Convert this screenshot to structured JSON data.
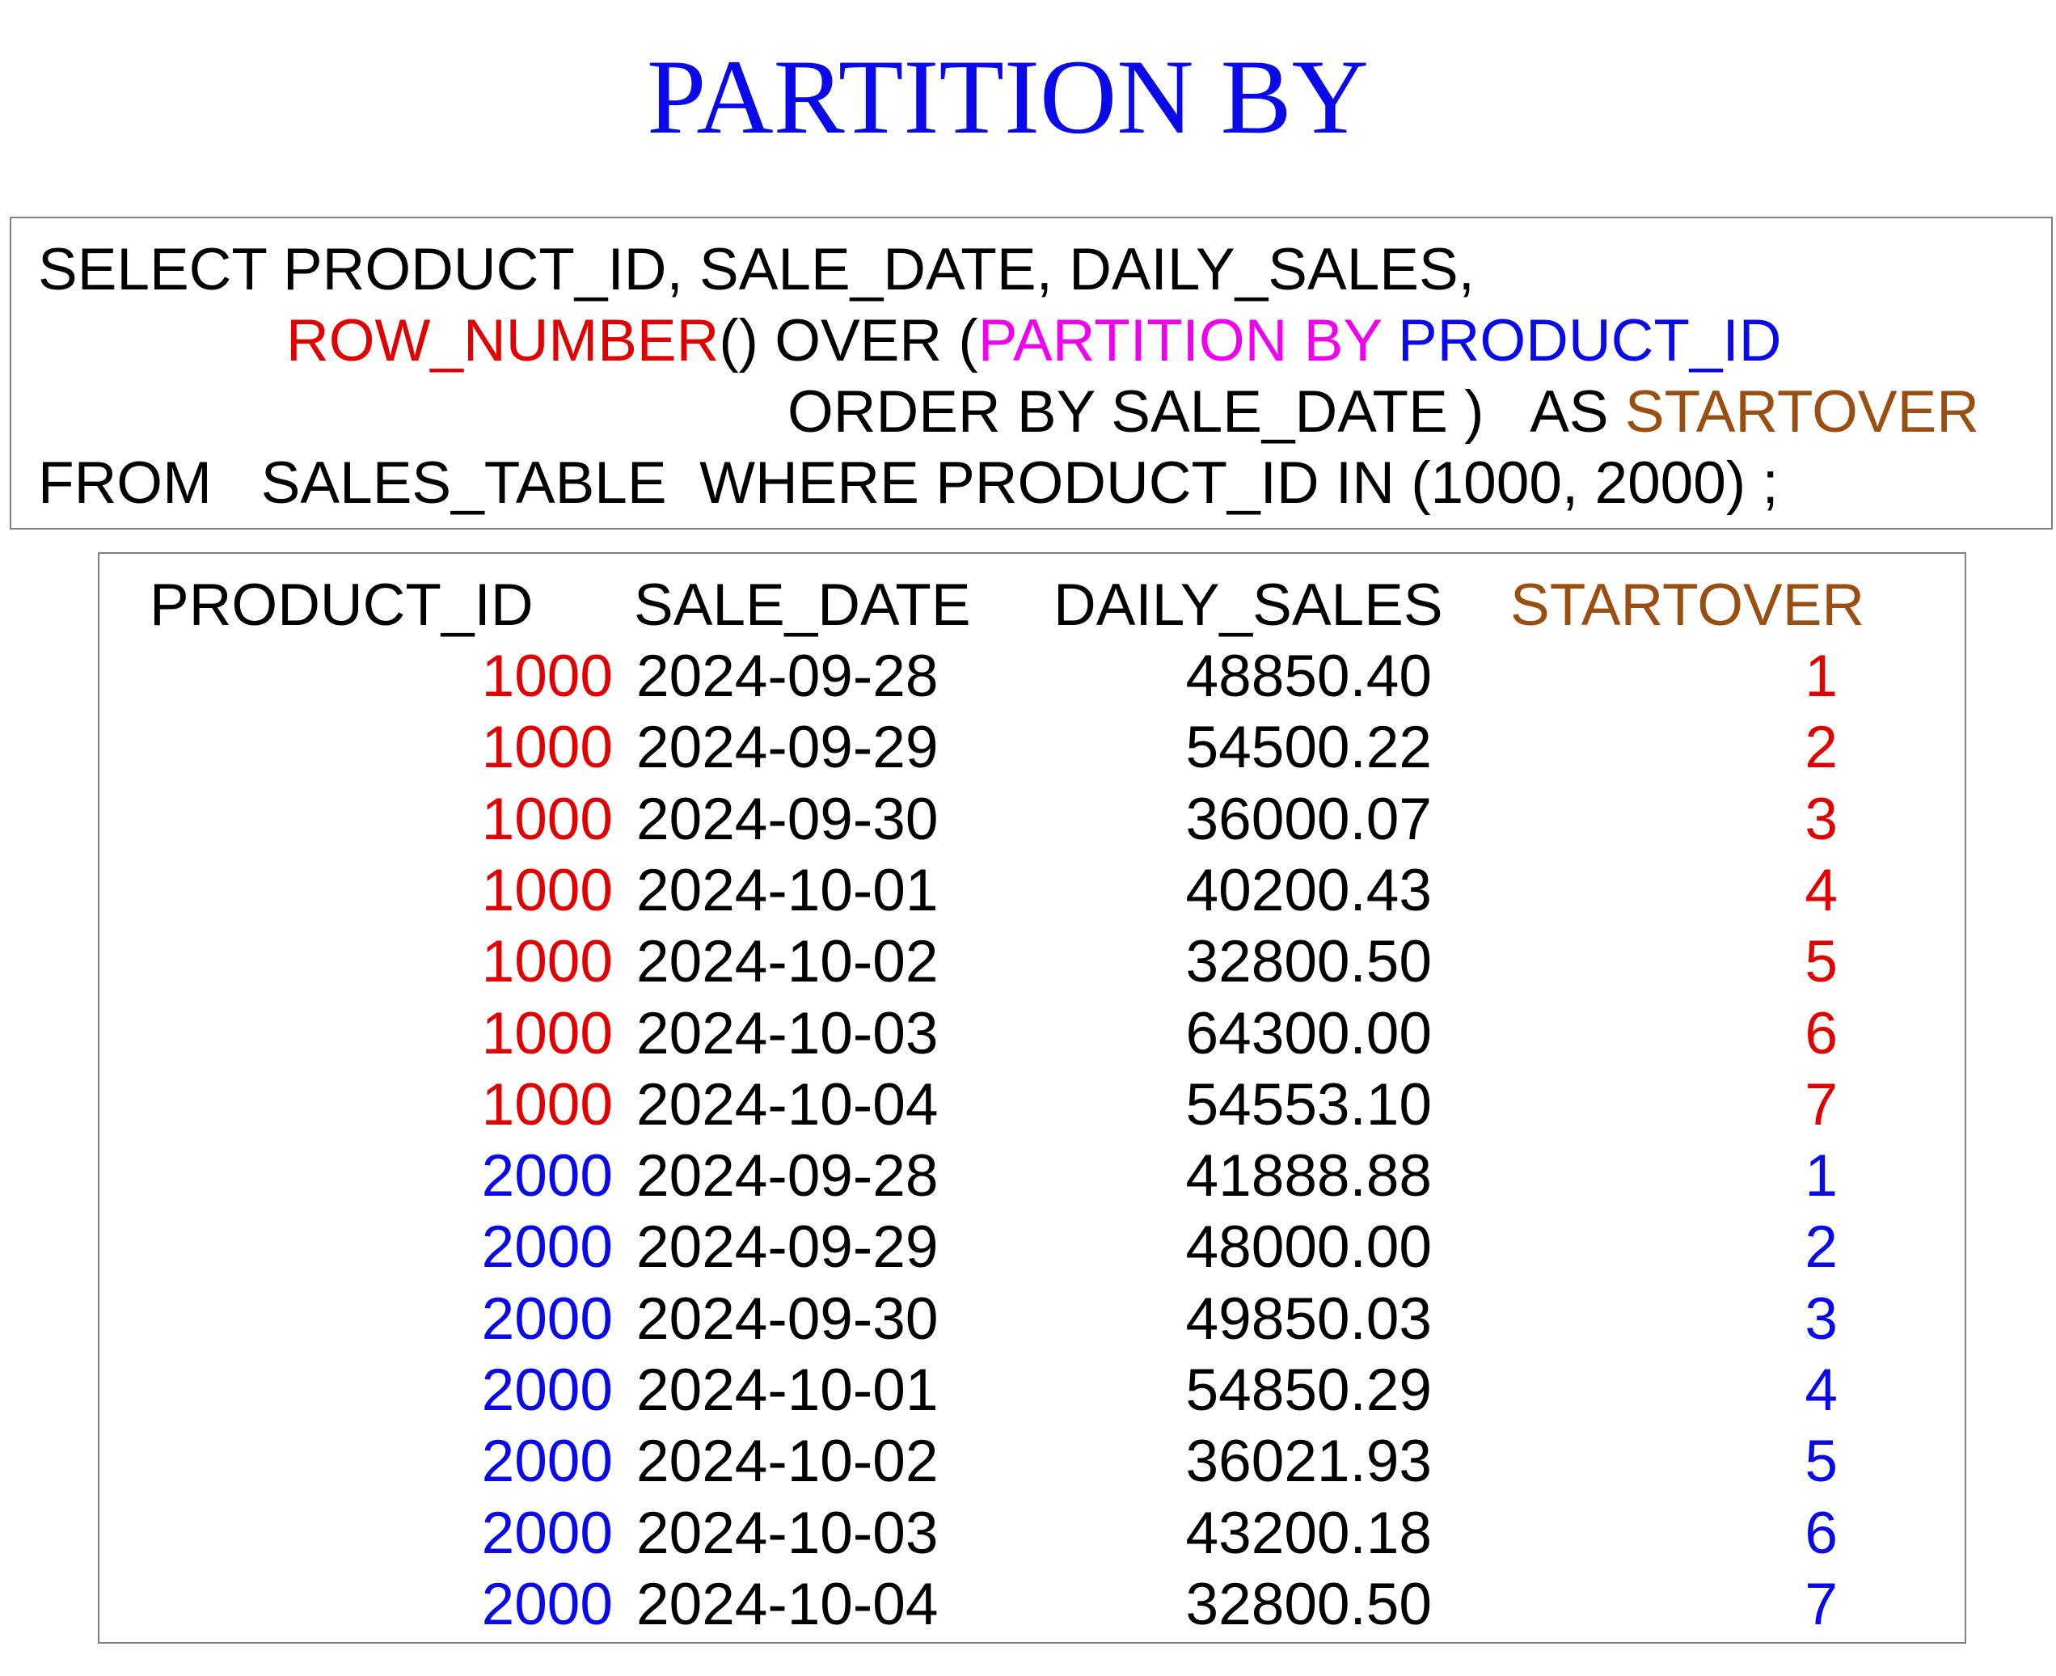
{
  "title": "PARTITION BY",
  "sql": {
    "line1": "SELECT PRODUCT_ID, SALE_DATE, DAILY_SALES,",
    "line2": {
      "fn": "ROW_NUMBER",
      "after_fn": "() OVER (",
      "partition_kw": "PARTITION BY",
      "partition_col": " PRODUCT_ID"
    },
    "line3": {
      "order_clause": "ORDER BY SALE_DATE )   AS ",
      "alias": "STARTOVER"
    },
    "line4": "FROM   SALES_TABLE  WHERE PRODUCT_ID IN (1000, 2000) ;"
  },
  "result": {
    "headers": [
      "PRODUCT_ID",
      "SALE_DATE",
      "DAILY_SALES",
      "STARTOVER"
    ],
    "rows": [
      {
        "product_id": "1000",
        "sale_date": "2024-09-28",
        "daily_sales": "48850.40",
        "startover": "1"
      },
      {
        "product_id": "1000",
        "sale_date": "2024-09-29",
        "daily_sales": "54500.22",
        "startover": "2"
      },
      {
        "product_id": "1000",
        "sale_date": "2024-09-30",
        "daily_sales": "36000.07",
        "startover": "3"
      },
      {
        "product_id": "1000",
        "sale_date": "2024-10-01",
        "daily_sales": "40200.43",
        "startover": "4"
      },
      {
        "product_id": "1000",
        "sale_date": "2024-10-02",
        "daily_sales": "32800.50",
        "startover": "5"
      },
      {
        "product_id": "1000",
        "sale_date": "2024-10-03",
        "daily_sales": "64300.00",
        "startover": "6"
      },
      {
        "product_id": "1000",
        "sale_date": "2024-10-04",
        "daily_sales": "54553.10",
        "startover": "7"
      },
      {
        "product_id": "2000",
        "sale_date": "2024-09-28",
        "daily_sales": "41888.88",
        "startover": "1"
      },
      {
        "product_id": "2000",
        "sale_date": "2024-09-29",
        "daily_sales": "48000.00",
        "startover": "2"
      },
      {
        "product_id": "2000",
        "sale_date": "2024-09-30",
        "daily_sales": "49850.03",
        "startover": "3"
      },
      {
        "product_id": "2000",
        "sale_date": "2024-10-01",
        "daily_sales": "54850.29",
        "startover": "4"
      },
      {
        "product_id": "2000",
        "sale_date": "2024-10-02",
        "daily_sales": "36021.93",
        "startover": "5"
      },
      {
        "product_id": "2000",
        "sale_date": "2024-10-03",
        "daily_sales": "43200.18",
        "startover": "6"
      },
      {
        "product_id": "2000",
        "sale_date": "2024-10-04",
        "daily_sales": "32800.50",
        "startover": "7"
      }
    ]
  },
  "colors": {
    "title": "#0a0ae8",
    "function": "#e00000",
    "partition_keyword": "#ee00ee",
    "partition_column": "#0a0ae8",
    "alias": "#9a4e10",
    "group_1000": "#e00000",
    "group_2000": "#0a0ae8"
  }
}
